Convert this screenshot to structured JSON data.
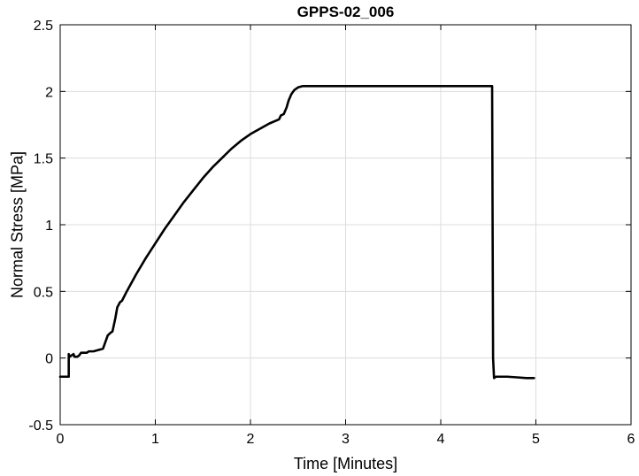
{
  "chart_data": {
    "type": "line",
    "title": "GPPS-02_006",
    "xlabel": "Time [Minutes]",
    "ylabel": "Normal Stress [MPa]",
    "xlim": [
      0,
      6
    ],
    "ylim": [
      -0.5,
      2.5
    ],
    "xticks": [
      0,
      1,
      2,
      3,
      4,
      5,
      6
    ],
    "yticks": [
      -0.5,
      0,
      0.5,
      1,
      1.5,
      2,
      2.5
    ],
    "xtick_labels": [
      "0",
      "1",
      "2",
      "3",
      "4",
      "5",
      "6"
    ],
    "ytick_labels": [
      "-0.5",
      "0",
      "0.5",
      "1",
      "1.5",
      "2",
      "2.5"
    ],
    "grid": true,
    "series": [
      {
        "color": "#000000",
        "x": [
          0.0,
          0.09,
          0.09,
          0.1,
          0.14,
          0.15,
          0.18,
          0.2,
          0.22,
          0.25,
          0.28,
          0.3,
          0.35,
          0.4,
          0.45,
          0.48,
          0.5,
          0.53,
          0.55,
          0.58,
          0.6,
          0.63,
          0.65,
          0.7,
          0.8,
          0.9,
          1.0,
          1.1,
          1.2,
          1.3,
          1.4,
          1.5,
          1.6,
          1.7,
          1.8,
          1.9,
          2.0,
          2.1,
          2.2,
          2.3,
          2.32,
          2.35,
          2.38,
          2.4,
          2.43,
          2.46,
          2.5,
          2.55,
          2.6,
          2.7,
          3.0,
          3.5,
          4.0,
          4.5,
          4.54,
          4.545,
          4.55,
          4.56,
          4.58,
          4.62,
          4.7,
          4.8,
          4.9,
          4.98
        ],
        "y": [
          -0.14,
          -0.14,
          0.03,
          0.01,
          0.03,
          0.01,
          0.01,
          0.02,
          0.04,
          0.04,
          0.04,
          0.05,
          0.05,
          0.06,
          0.07,
          0.13,
          0.17,
          0.19,
          0.2,
          0.3,
          0.38,
          0.42,
          0.43,
          0.5,
          0.63,
          0.75,
          0.86,
          0.97,
          1.07,
          1.17,
          1.26,
          1.35,
          1.43,
          1.5,
          1.57,
          1.63,
          1.68,
          1.72,
          1.76,
          1.79,
          1.82,
          1.83,
          1.88,
          1.93,
          1.98,
          2.01,
          2.03,
          2.04,
          2.04,
          2.04,
          2.04,
          2.04,
          2.04,
          2.04,
          2.04,
          1.0,
          0.0,
          -0.15,
          -0.14,
          -0.14,
          -0.14,
          -0.145,
          -0.15,
          -0.15
        ]
      }
    ]
  }
}
